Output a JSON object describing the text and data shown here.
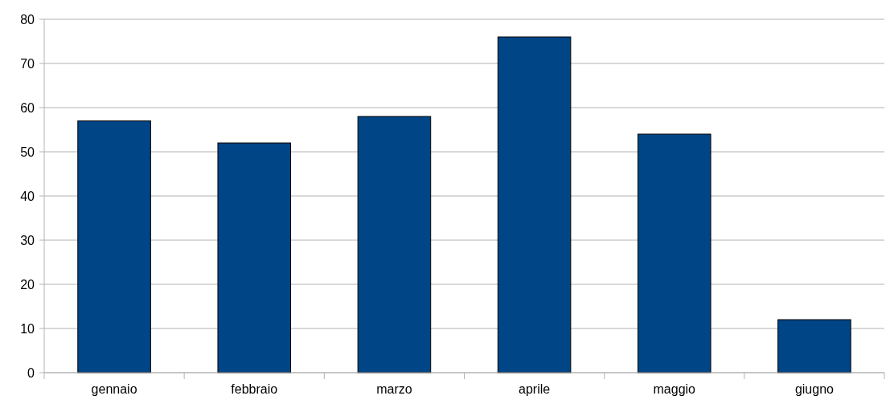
{
  "chart_data": {
    "type": "bar",
    "categories": [
      "gennaio",
      "febbraio",
      "marzo",
      "aprile",
      "maggio",
      "giugno"
    ],
    "values": [
      57,
      52,
      58,
      76,
      54,
      12
    ],
    "color": "#004586",
    "ylim": [
      0,
      80
    ],
    "yticks": [
      0,
      10,
      20,
      30,
      40,
      50,
      60,
      70,
      80
    ],
    "grid": "y"
  }
}
